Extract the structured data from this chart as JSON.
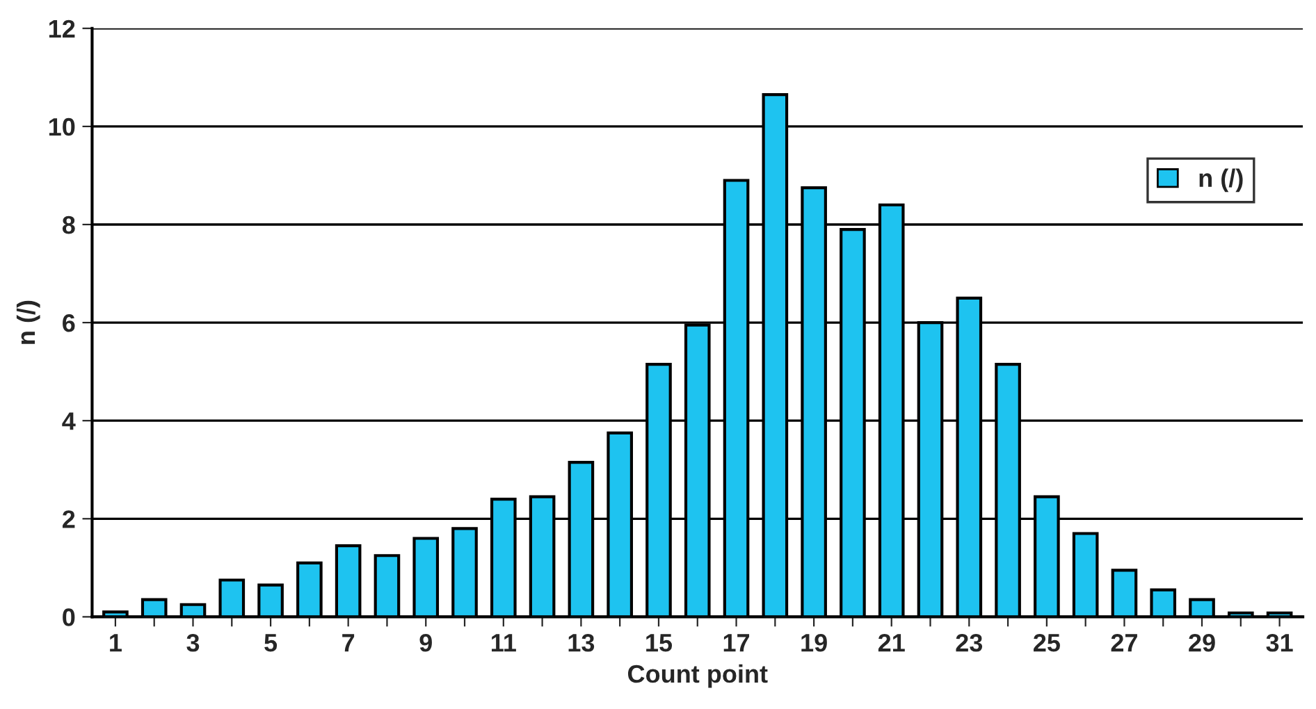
{
  "chart_data": {
    "type": "bar",
    "xlabel": "Count point",
    "ylabel": "n (/)",
    "categories": [
      "1",
      null,
      "3",
      null,
      "5",
      null,
      "7",
      null,
      "9",
      null,
      "11",
      null,
      "13",
      null,
      "15",
      null,
      "17",
      null,
      "19",
      null,
      "21",
      null,
      "23",
      null,
      "25",
      null,
      "27",
      null,
      "29",
      null,
      "31"
    ],
    "series": [
      {
        "name": "n (/)",
        "color": "#1ec3f0",
        "values": [
          0.1,
          0.35,
          0.25,
          0.75,
          0.65,
          1.1,
          1.45,
          1.25,
          1.6,
          1.8,
          2.4,
          2.45,
          3.15,
          3.75,
          5.15,
          5.95,
          8.9,
          10.65,
          8.75,
          7.9,
          8.4,
          6.0,
          6.5,
          5.15,
          2.45,
          1.7,
          0.95,
          0.55,
          0.35,
          0.08,
          0.08
        ]
      }
    ],
    "ylim": [
      0,
      12
    ],
    "yticks": [
      0,
      2,
      4,
      6,
      8,
      10,
      12
    ],
    "grid": "y",
    "legend": "top right"
  }
}
